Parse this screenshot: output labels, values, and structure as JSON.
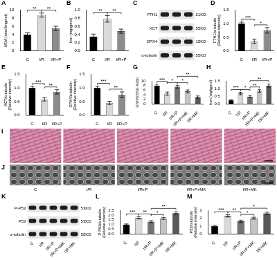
{
  "chart_data": [
    {
      "panel": "A",
      "type": "bar",
      "categories": [
        "C",
        "I/R",
        "I/R+P"
      ],
      "values": [
        4.0,
        8.7,
        5.5
      ],
      "errors": [
        0.4,
        0.5,
        0.5
      ],
      "colors": [
        "#000000",
        "#d9d9d9",
        "#8c8c8c"
      ],
      "y_label": "MDA (nmol/mgprot)",
      "ylim": [
        0,
        10
      ],
      "yticks": [
        0,
        2,
        4,
        6,
        8,
        10
      ],
      "grid": false,
      "annotations": [
        {
          "from": "C",
          "to": "I/R",
          "label": "**"
        },
        {
          "from": "I/R",
          "to": "I/R+P",
          "label": "**"
        }
      ]
    },
    {
      "panel": "B",
      "type": "bar",
      "categories": [
        "C",
        "I/R",
        "I/R+P"
      ],
      "values": [
        0.35,
        0.78,
        0.48
      ],
      "errors": [
        0.06,
        0.08,
        0.05
      ],
      "colors": [
        "#000000",
        "#d9d9d9",
        "#8c8c8c"
      ],
      "y_label": "Iron (mg/gprot)",
      "ylim": [
        0,
        1
      ],
      "yticks": [
        {
          "value": 0,
          "label": "0.0"
        },
        0.2,
        0.4,
        0.6,
        0.8,
        {
          "value": 1,
          "label": "1.0"
        }
      ],
      "grid": false,
      "annotations": [
        {
          "from": "C",
          "to": "I/R",
          "label": "**"
        },
        {
          "from": "I/R",
          "to": "I/R+P",
          "label": "**"
        }
      ]
    },
    {
      "panel": "D",
      "type": "bar",
      "categories": [
        "C",
        "I/R",
        "I/R+P"
      ],
      "values": [
        1.0,
        0.35,
        0.75
      ],
      "errors": [
        0.05,
        0.08,
        0.1
      ],
      "colors": [
        "#000000",
        "#d9d9d9",
        "#8c8c8c"
      ],
      "y_label": "FTH1/α-tubulin (Relative intensity)",
      "ylim": [
        0,
        1.5
      ],
      "yticks": [
        {
          "value": 0,
          "label": "0.0"
        },
        0.5,
        {
          "value": 1,
          "label": "1.0"
        },
        1.5
      ],
      "grid": false,
      "annotations": [
        {
          "from": "C",
          "to": "I/R",
          "label": "***"
        },
        {
          "from": "I/R",
          "to": "I/R+P",
          "label": "*"
        }
      ]
    },
    {
      "panel": "E",
      "type": "bar",
      "categories": [
        "C",
        "I/R",
        "I/R+P"
      ],
      "values": [
        1.0,
        0.58,
        0.85
      ],
      "errors": [
        0.05,
        0.06,
        0.08
      ],
      "colors": [
        "#000000",
        "#d9d9d9",
        "#8c8c8c"
      ],
      "y_label": "XCT/α-tubulin (Relative intensity)",
      "ylim": [
        0,
        1.5
      ],
      "yticks": [
        {
          "value": 0,
          "label": "0.0"
        },
        0.5,
        {
          "value": 1,
          "label": "1.0"
        },
        1.5
      ],
      "grid": false,
      "annotations": [
        {
          "from": "C",
          "to": "I/R",
          "label": "***"
        },
        {
          "from": "I/R",
          "to": "I/R+P",
          "label": "**"
        }
      ]
    },
    {
      "panel": "F",
      "type": "bar",
      "categories": [
        "C",
        "I/R",
        "I/R+P"
      ],
      "values": [
        1.0,
        0.45,
        0.75
      ],
      "errors": [
        0.06,
        0.06,
        0.1
      ],
      "colors": [
        "#000000",
        "#d9d9d9",
        "#8c8c8c"
      ],
      "y_label": "GPX4/α-tubulin (Relative intensity)",
      "ylim": [
        0,
        1.5
      ],
      "yticks": [
        {
          "value": 0,
          "label": "0.0"
        },
        0.5,
        {
          "value": 1,
          "label": "1.0"
        },
        1.5
      ],
      "grid": false,
      "annotations": [
        {
          "from": "C",
          "to": "I/R",
          "label": "***"
        },
        {
          "from": "I/R",
          "to": "I/R+P",
          "label": "**"
        }
      ]
    },
    {
      "panel": "G",
      "type": "bar",
      "categories": [
        "C",
        "I/R",
        "I/R+P",
        "I/R+P+MK",
        "I/R+MK"
      ],
      "values": [
        8.0,
        4.5,
        7.5,
        5.5,
        3.0
      ],
      "errors": [
        0.6,
        0.7,
        0.6,
        0.6,
        0.5
      ],
      "colors": [
        "#000000",
        "#d9d9d9",
        "#737373",
        "#c4c4c4",
        "#595959"
      ],
      "y_label": "GSH/GSSG Ratio",
      "ylim": [
        0,
        10
      ],
      "yticks": [
        0,
        2,
        4,
        6,
        8,
        10
      ],
      "grid": false,
      "annotations": [
        {
          "from": "C",
          "to": "I/R",
          "label": "***"
        },
        {
          "from": "I/R",
          "to": "I/R+P",
          "label": "*"
        },
        {
          "from": "I/R+P",
          "to": "I/R+P+MK",
          "label": "*"
        },
        {
          "from": "I/R+P",
          "to": "I/R+MK",
          "label": "**"
        }
      ]
    },
    {
      "panel": "H",
      "type": "bar",
      "categories": [
        "C",
        "I/R",
        "I/R+P",
        "I/R+P+MK",
        "I/R+MK"
      ],
      "values": [
        0.25,
        0.68,
        0.48,
        0.85,
        1.2
      ],
      "errors": [
        0.04,
        0.08,
        0.06,
        0.08,
        0.1
      ],
      "colors": [
        "#000000",
        "#d9d9d9",
        "#737373",
        "#c4c4c4",
        "#595959"
      ],
      "y_label": "Iron (mg/gprot)",
      "ylim": [
        0,
        1.5
      ],
      "yticks": [
        {
          "value": 0,
          "label": "0.0"
        },
        0.5,
        {
          "value": 1,
          "label": "1.0"
        },
        1.5
      ],
      "grid": false,
      "annotations": [
        {
          "from": "C",
          "to": "I/R",
          "label": "***"
        },
        {
          "from": "I/R",
          "to": "I/R+P",
          "label": "*"
        },
        {
          "from": "I/R+P",
          "to": "I/R+P+MK",
          "label": "**"
        },
        {
          "from": "I/R+P",
          "to": "I/R+MK",
          "label": "**"
        }
      ]
    },
    {
      "panel": "L",
      "type": "bar",
      "categories": [
        "C",
        "I/R",
        "I/R+P",
        "I/R+P+MK",
        "I/R+MK"
      ],
      "values": [
        1.0,
        1.7,
        1.3,
        1.65,
        2.2
      ],
      "errors": [
        0.06,
        0.12,
        0.1,
        0.1,
        0.12
      ],
      "colors": [
        "#000000",
        "#d9d9d9",
        "#737373",
        "#c4c4c4",
        "#595959"
      ],
      "y_label": "P-P53/α-tubulin (Relative intensity)",
      "ylim": [
        0,
        2.5
      ],
      "yticks": [
        {
          "value": 0,
          "label": "0.0"
        },
        0.5,
        {
          "value": 1,
          "label": "1.0"
        },
        1.5,
        {
          "value": 2,
          "label": "2.0"
        },
        2.5
      ],
      "grid": false,
      "annotations": [
        {
          "from": "C",
          "to": "I/R",
          "label": "***"
        },
        {
          "from": "I/R",
          "to": "I/R+P",
          "label": "**"
        },
        {
          "from": "I/R+P",
          "to": "I/R+P+MK",
          "label": "*"
        },
        {
          "from": "I/R+P",
          "to": "I/R+MK",
          "label": "**"
        }
      ]
    },
    {
      "panel": "M",
      "type": "bar",
      "categories": [
        "C",
        "I/R",
        "I/R+P",
        "I/R+P+MK",
        "I/R+MK"
      ],
      "values": [
        1.0,
        2.3,
        1.6,
        2.0,
        2.6
      ],
      "errors": [
        0.1,
        0.15,
        0.15,
        0.12,
        0.15
      ],
      "colors": [
        "#000000",
        "#d9d9d9",
        "#737373",
        "#c4c4c4",
        "#595959"
      ],
      "y_label": "P53/α-tubulin (Relative intensity)",
      "ylim": [
        0,
        3
      ],
      "yticks": [
        0,
        1,
        2,
        3
      ],
      "grid": false,
      "annotations": [
        {
          "from": "C",
          "to": "I/R",
          "label": "***"
        },
        {
          "from": "I/R",
          "to": "I/R+P",
          "label": "**"
        },
        {
          "from": "I/R+P",
          "to": "I/R+P+MK",
          "label": "*"
        },
        {
          "from": "I/R+P",
          "to": "I/R+MK",
          "label": "*"
        }
      ]
    }
  ],
  "blots": [
    {
      "panel": "C",
      "lane_count": 3,
      "rows": [
        {
          "label": "FTH1",
          "size": "21KD"
        },
        {
          "label": "XCT",
          "size": "55KD"
        },
        {
          "label": "GPX4",
          "size": "15KD"
        },
        {
          "label": "α-tubulin",
          "size": "55KD"
        }
      ]
    },
    {
      "panel": "K",
      "lanes": [
        "C",
        "I/R",
        "I/R+P",
        "I/R+P+MK",
        "I/R+MK"
      ],
      "rows": [
        {
          "label": "P-P53",
          "size": "53KD"
        },
        {
          "label": "P53",
          "size": "53KD"
        },
        {
          "label": "α-tubulin",
          "size": "55KD"
        }
      ]
    }
  ],
  "images": [
    {
      "panel": "I",
      "columns": 5,
      "color": "#d98fae"
    },
    {
      "panel": "J",
      "labels": [
        "C",
        "I/R",
        "I/R+P",
        "I/R+P+MK",
        "I/R+MK"
      ],
      "color": "#7a7a7a"
    }
  ]
}
